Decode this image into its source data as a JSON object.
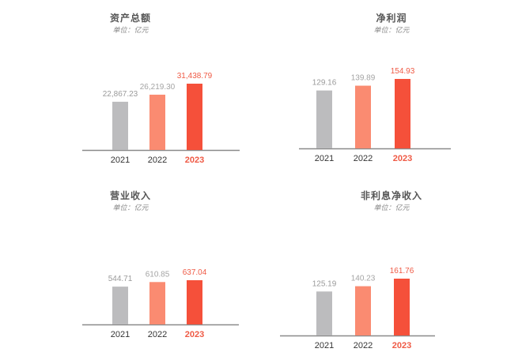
{
  "colors": {
    "bar_2021": "#bcbcbe",
    "bar_2022": "#fa8b71",
    "bar_2023": "#f5503a",
    "label_default": "#9a9a9a",
    "label_2022": "#a4a4a4",
    "label_2023": "#ef5a45",
    "axis": "#8a8a8a"
  },
  "chart_data": [
    {
      "type": "bar",
      "title": "资产总额",
      "subtitle": "单位：亿元",
      "categories": [
        "2021",
        "2022",
        "2023"
      ],
      "values": [
        22867.23,
        26219.3,
        31438.79
      ],
      "value_labels": [
        "22,867.23",
        "26,219.30",
        "31,438.79"
      ],
      "highlight_category": "2023"
    },
    {
      "type": "bar",
      "title": "净利润",
      "subtitle": "单位：亿元",
      "categories": [
        "2021",
        "2022",
        "2023"
      ],
      "values": [
        129.16,
        139.89,
        154.93
      ],
      "value_labels": [
        "129.16",
        "139.89",
        "154.93"
      ],
      "highlight_category": "2023"
    },
    {
      "type": "bar",
      "title": "营业收入",
      "subtitle": "单位：亿元",
      "categories": [
        "2021",
        "2022",
        "2023"
      ],
      "values": [
        544.71,
        610.85,
        637.04
      ],
      "value_labels": [
        "544.71",
        "610.85",
        "637.04"
      ],
      "highlight_category": "2023"
    },
    {
      "type": "bar",
      "title": "非利息净收入",
      "subtitle": "单位：亿元",
      "categories": [
        "2021",
        "2022",
        "2023"
      ],
      "values": [
        125.19,
        140.23,
        161.76
      ],
      "value_labels": [
        "125.19",
        "140.23",
        "161.76"
      ],
      "highlight_category": "2023"
    }
  ]
}
